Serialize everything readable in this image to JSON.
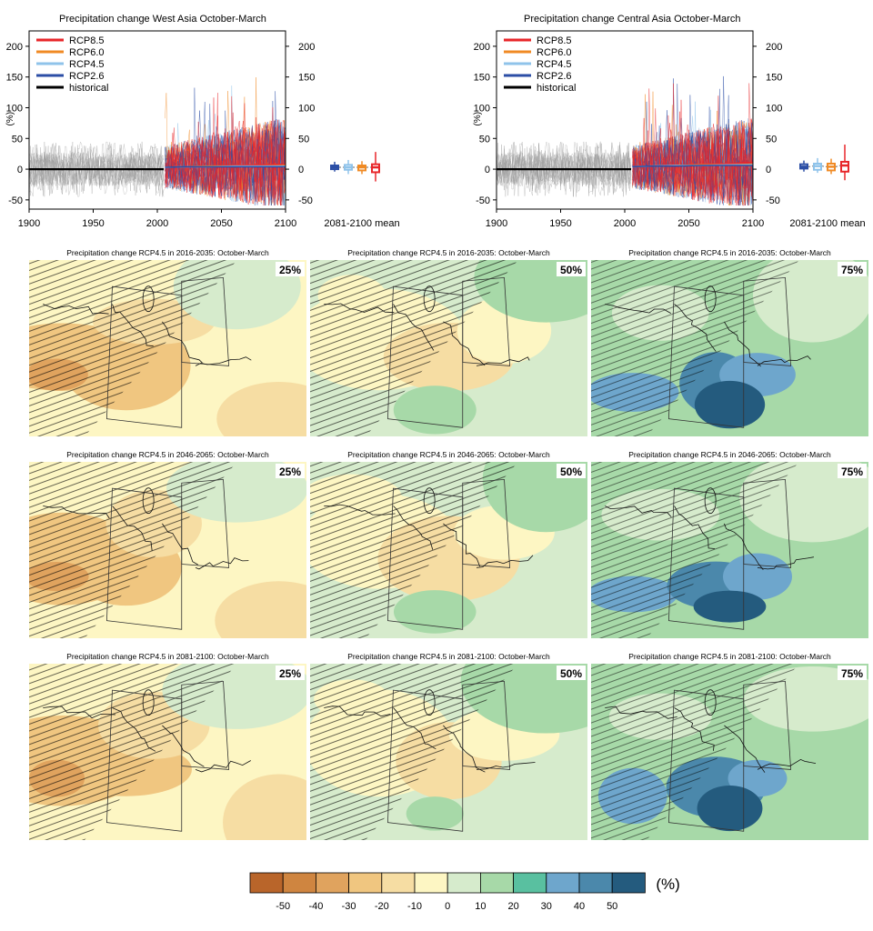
{
  "chart_data": [
    {
      "type": "line",
      "title": "Precipitation change West Asia October-March",
      "ylabel": "(%)",
      "xlim": [
        1900,
        2100
      ],
      "ylim": [
        -65,
        225
      ],
      "x_ticks": [
        1900,
        1950,
        2000,
        2050,
        2100
      ],
      "y_ticks": [
        -50,
        0,
        50,
        100,
        150,
        200
      ],
      "legend_position": "top-left",
      "series": [
        {
          "name": "RCP8.5",
          "color": "#e8262a",
          "x": [
            2006,
            2020,
            2040,
            2060,
            2080,
            2100
          ],
          "values": [
            3,
            4,
            5,
            6,
            7,
            8
          ]
        },
        {
          "name": "RCP6.0",
          "color": "#f08a24",
          "x": [
            2006,
            2020,
            2040,
            2060,
            2080,
            2100
          ],
          "values": [
            3,
            4,
            5,
            5,
            5,
            6
          ]
        },
        {
          "name": "RCP4.5",
          "color": "#8fc3ea",
          "x": [
            2006,
            2020,
            2040,
            2060,
            2080,
            2100
          ],
          "values": [
            3,
            4,
            4,
            5,
            5,
            5
          ]
        },
        {
          "name": "RCP2.6",
          "color": "#2b4ea6",
          "x": [
            2006,
            2020,
            2040,
            2060,
            2080,
            2100
          ],
          "values": [
            3,
            4,
            4,
            4,
            4,
            4
          ]
        },
        {
          "name": "historical",
          "color": "#000000",
          "x": [
            1900,
            1925,
            1950,
            1975,
            2005
          ],
          "values": [
            0,
            0,
            0,
            0,
            0
          ]
        }
      ],
      "inset": {
        "label": "2081-2100 mean",
        "boxes": [
          {
            "name": "RCP2.6",
            "color": "#2b4ea6",
            "min": -4,
            "q1": 0,
            "median": 3,
            "q3": 6,
            "max": 12
          },
          {
            "name": "RCP4.5",
            "color": "#8fc3ea",
            "min": -8,
            "q1": -1,
            "median": 3,
            "q3": 7,
            "max": 15
          },
          {
            "name": "RCP6.0",
            "color": "#f08a24",
            "min": -8,
            "q1": -2,
            "median": 3,
            "q3": 6,
            "max": 13
          },
          {
            "name": "RCP8.5",
            "color": "#e8262a",
            "min": -20,
            "q1": -5,
            "median": 3,
            "q3": 8,
            "max": 28
          }
        ]
      }
    },
    {
      "type": "line",
      "title": "Precipitation change Central Asia October-March",
      "ylabel": "(%)",
      "xlim": [
        1900,
        2100
      ],
      "ylim": [
        -65,
        225
      ],
      "x_ticks": [
        1900,
        1950,
        2000,
        2050,
        2100
      ],
      "y_ticks": [
        -50,
        0,
        50,
        100,
        150,
        200
      ],
      "legend_position": "top-left",
      "series": [
        {
          "name": "RCP8.5",
          "color": "#e8262a",
          "x": [
            2006,
            2020,
            2040,
            2060,
            2080,
            2100
          ],
          "values": [
            4,
            5,
            6,
            8,
            9,
            11
          ]
        },
        {
          "name": "RCP6.0",
          "color": "#f08a24",
          "x": [
            2006,
            2020,
            2040,
            2060,
            2080,
            2100
          ],
          "values": [
            4,
            5,
            6,
            7,
            7,
            8
          ]
        },
        {
          "name": "RCP4.5",
          "color": "#8fc3ea",
          "x": [
            2006,
            2020,
            2040,
            2060,
            2080,
            2100
          ],
          "values": [
            4,
            5,
            6,
            6,
            7,
            7
          ]
        },
        {
          "name": "RCP2.6",
          "color": "#2b4ea6",
          "x": [
            2006,
            2020,
            2040,
            2060,
            2080,
            2100
          ],
          "values": [
            4,
            5,
            5,
            6,
            6,
            6
          ]
        },
        {
          "name": "historical",
          "color": "#000000",
          "x": [
            1900,
            1925,
            1950,
            1975,
            2005
          ],
          "values": [
            0,
            0,
            0,
            0,
            0
          ]
        }
      ],
      "inset": {
        "label": "2081-2100 mean",
        "boxes": [
          {
            "name": "RCP2.6",
            "color": "#2b4ea6",
            "min": -4,
            "q1": 1,
            "median": 4,
            "q3": 8,
            "max": 14
          },
          {
            "name": "RCP4.5",
            "color": "#8fc3ea",
            "min": -6,
            "q1": -1,
            "median": 5,
            "q3": 9,
            "max": 18
          },
          {
            "name": "RCP6.0",
            "color": "#f08a24",
            "min": -8,
            "q1": -2,
            "median": 4,
            "q3": 9,
            "max": 17
          },
          {
            "name": "RCP8.5",
            "color": "#e8262a",
            "min": -18,
            "q1": -4,
            "median": 6,
            "q3": 12,
            "max": 40
          }
        ]
      }
    },
    {
      "type": "heatmap",
      "panels": [
        {
          "title": "Precipitation change RCP4.5 in 2016-2035: October-March",
          "percentile": "25%",
          "palette": "dry"
        },
        {
          "title": "Precipitation change RCP4.5 in 2016-2035: October-March",
          "percentile": "50%",
          "palette": "mid"
        },
        {
          "title": "Precipitation change RCP4.5 in 2016-2035: October-March",
          "percentile": "75%",
          "palette": "wet"
        },
        {
          "title": "Precipitation change RCP4.5 in 2046-2065: October-March",
          "percentile": "25%",
          "palette": "dry"
        },
        {
          "title": "Precipitation change RCP4.5 in 2046-2065: October-March",
          "percentile": "50%",
          "palette": "mid"
        },
        {
          "title": "Precipitation change RCP4.5 in 2046-2065: October-March",
          "percentile": "75%",
          "palette": "wet"
        },
        {
          "title": "Precipitation change RCP4.5 in 2081-2100: October-March",
          "percentile": "25%",
          "palette": "dry"
        },
        {
          "title": "Precipitation change RCP4.5 in 2081-2100: October-March",
          "percentile": "50%",
          "palette": "mid"
        },
        {
          "title": "Precipitation change RCP4.5 in 2081-2100: October-March",
          "percentile": "75%",
          "palette": "wet"
        }
      ],
      "colorbar": {
        "unit": "(%)",
        "ticks": [
          "-50",
          "-40",
          "-30",
          "-20",
          "-10",
          "0",
          "10",
          "20",
          "30",
          "40",
          "50"
        ],
        "colors": [
          "#b9652a",
          "#cf8540",
          "#e0a35e",
          "#f0c680",
          "#f6dda3",
          "#fdf6c3",
          "#d6ebcc",
          "#a7d9a8",
          "#59c0a0",
          "#6ea6cc",
          "#4b88ab",
          "#245b7e"
        ]
      }
    }
  ]
}
